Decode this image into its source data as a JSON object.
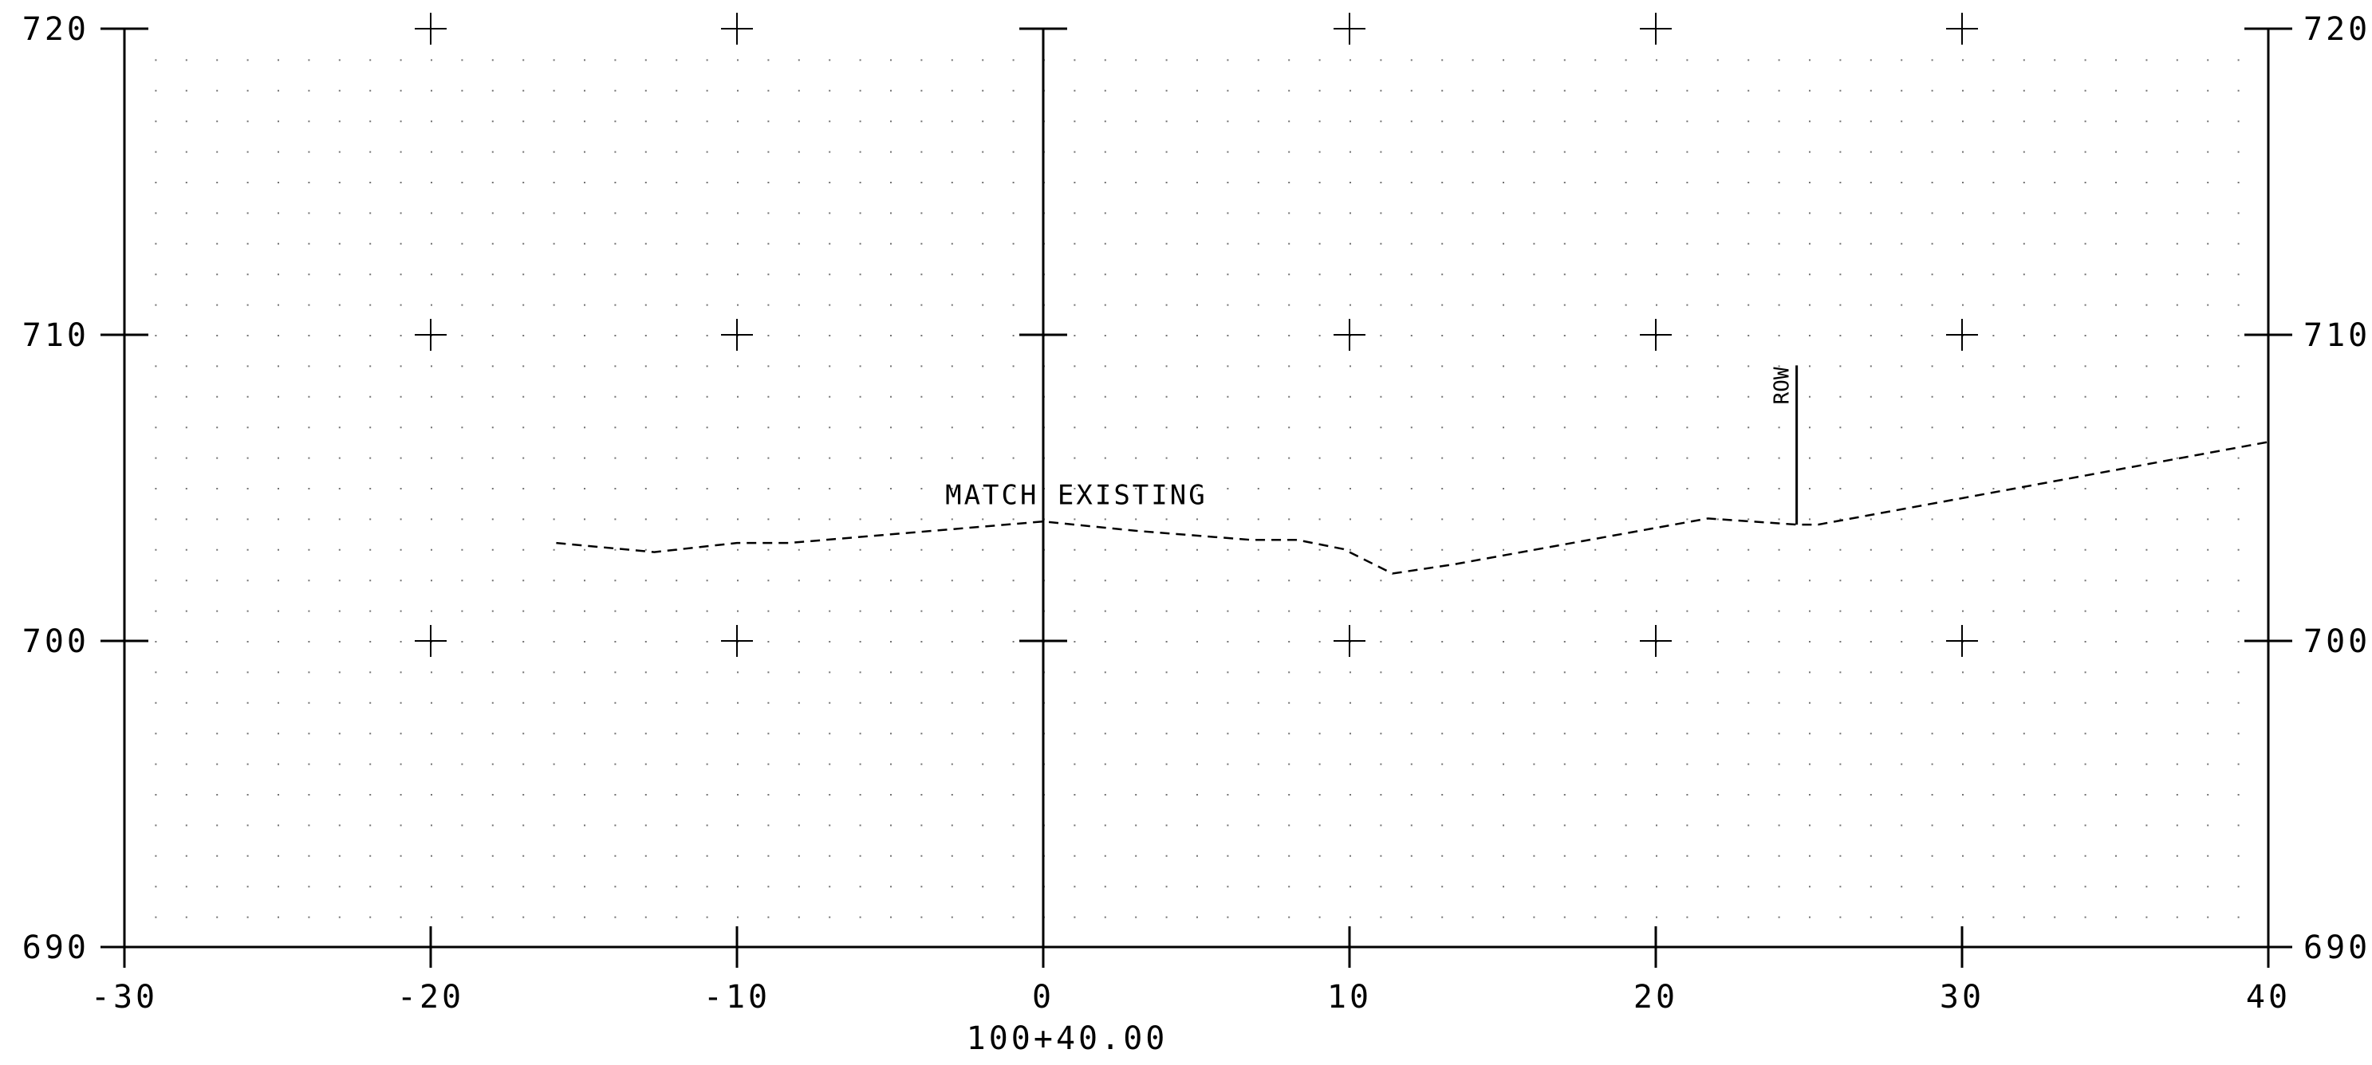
{
  "section": {
    "station_label": "100+40.00",
    "x_axis": {
      "min": -30,
      "max": 40,
      "ticks": [
        -30,
        -20,
        -10,
        0,
        10,
        20,
        30,
        40
      ]
    },
    "y_axis": {
      "min": 690,
      "max": 720,
      "ticks": [
        690,
        700,
        710,
        720
      ]
    },
    "x_tick_labels": [
      "-30",
      "-20",
      "-10",
      "0",
      "10",
      "20",
      "30",
      "40"
    ],
    "y_tick_labels": [
      "690",
      "700",
      "710",
      "720"
    ],
    "ground_profile": [
      [
        -15.9,
        703.2
      ],
      [
        -12.7,
        702.9
      ],
      [
        -10.0,
        703.2
      ],
      [
        -8.3,
        703.2
      ],
      [
        0.0,
        703.9
      ],
      [
        3.0,
        703.6
      ],
      [
        6.8,
        703.3
      ],
      [
        8.3,
        703.3
      ],
      [
        9.8,
        703.0
      ],
      [
        11.4,
        702.2
      ],
      [
        13.4,
        702.5
      ],
      [
        21.7,
        704.0
      ],
      [
        24.6,
        703.8
      ],
      [
        25.3,
        703.8
      ],
      [
        40.0,
        706.5
      ]
    ],
    "annotations": {
      "match_existing": {
        "text": "MATCH EXISTING",
        "x": -3.2,
        "y": 704.0
      },
      "row": {
        "text": "ROW",
        "x": 24.6,
        "y_bottom": 703.8,
        "y_top": 709.0
      }
    }
  }
}
